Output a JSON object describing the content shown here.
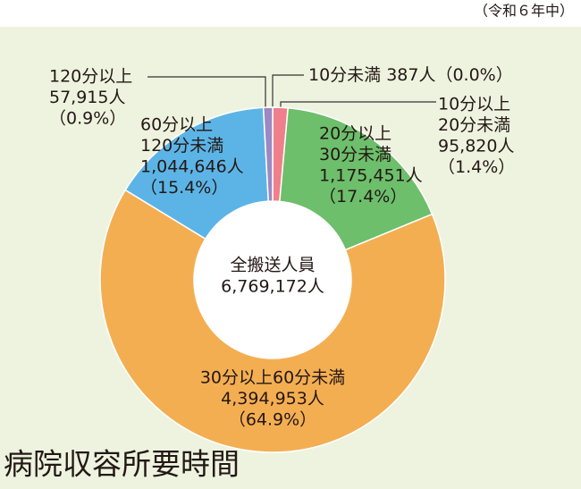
{
  "chart_data": {
    "type": "pie",
    "title": "病院収容所要時間",
    "note": "（令和６年中）",
    "categories": [
      [
        "10分未満"
      ],
      [
        "10分以上",
        "20分未満"
      ],
      [
        "20分以上",
        "30分未満"
      ],
      [
        "30分以上60分未満"
      ],
      [
        "60分以上",
        "120分未満"
      ],
      [
        "120分以上"
      ]
    ],
    "values": [
      387,
      95820,
      1175451,
      4394953,
      1044646,
      57915
    ],
    "value_labels": [
      "387人",
      "95,820人",
      "1,175,451人",
      "4,394,953人",
      "1,044,646人",
      "57,915人"
    ],
    "percent_labels": [
      "（0.0%）",
      "（1.4%）",
      "（17.4%）",
      "（64.9%）",
      "（15.4%）",
      "（0.9%）"
    ],
    "colors": [
      "#e8505b",
      "#ef7f8a",
      "#6dbf6b",
      "#f4ae52",
      "#5cb4e6",
      "#9a89c2"
    ],
    "center_label": "全搬送人員",
    "total": {
      "value": 6769172,
      "label": "6,769,172人"
    }
  }
}
